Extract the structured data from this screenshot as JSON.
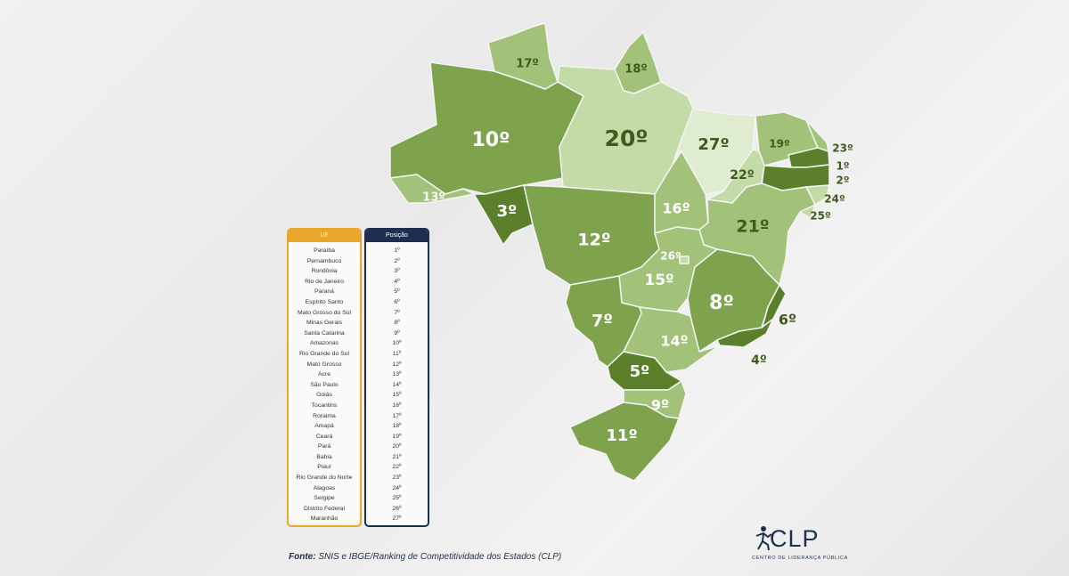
{
  "colors": {
    "c1": "#5c7f2c",
    "c2": "#7fa34c",
    "c3": "#a2c27a",
    "c4": "#c3dba6",
    "c5": "#dfeccf",
    "table_uf_border": "#e8a62b",
    "table_pos_border": "#1d2e50"
  },
  "map": {
    "states": [
      {
        "uf": "Roraima",
        "label": "17º"
      },
      {
        "uf": "Amapá",
        "label": "18º"
      },
      {
        "uf": "Amazonas",
        "label": "10º"
      },
      {
        "uf": "Pará",
        "label": "20º"
      },
      {
        "uf": "Maranhão",
        "label": "27º"
      },
      {
        "uf": "Ceará",
        "label": "19º"
      },
      {
        "uf": "Piauí",
        "label": "22º"
      },
      {
        "uf": "Rio Grande do Norte",
        "label": "23º"
      },
      {
        "uf": "Paraíba",
        "label": "1º"
      },
      {
        "uf": "Pernambuco",
        "label": "2º"
      },
      {
        "uf": "Alagoas",
        "label": "24º"
      },
      {
        "uf": "Sergipe",
        "label": "25º"
      },
      {
        "uf": "Acre",
        "label": "13º"
      },
      {
        "uf": "Rondônia",
        "label": "3º"
      },
      {
        "uf": "Mato Grosso",
        "label": "12º"
      },
      {
        "uf": "Tocantins",
        "label": "16º"
      },
      {
        "uf": "Bahia",
        "label": "21º"
      },
      {
        "uf": "Distrito Federal",
        "label": "26º"
      },
      {
        "uf": "Goiás",
        "label": "15º"
      },
      {
        "uf": "Minas Gerais",
        "label": "8º"
      },
      {
        "uf": "Espírito Santo",
        "label": "6º"
      },
      {
        "uf": "Rio de Janeiro",
        "label": "4º"
      },
      {
        "uf": "Mato Grosso do Sul",
        "label": "7º"
      },
      {
        "uf": "São Paulo",
        "label": "14º"
      },
      {
        "uf": "Paraná",
        "label": "5º"
      },
      {
        "uf": "Santa Catarina",
        "label": "9º"
      },
      {
        "uf": "Rio Grande do Sul",
        "label": "11º"
      }
    ]
  },
  "table": {
    "header_uf": "UF",
    "header_pos": "Posição",
    "rows": [
      {
        "uf": "Paraíba",
        "pos": "1º"
      },
      {
        "uf": "Pernambuco",
        "pos": "2º"
      },
      {
        "uf": "Rondônia",
        "pos": "3º"
      },
      {
        "uf": "Rio de Janeiro",
        "pos": "4º"
      },
      {
        "uf": "Paraná",
        "pos": "5º"
      },
      {
        "uf": "Espírito Santo",
        "pos": "6º"
      },
      {
        "uf": "Mato Grosso do Sul",
        "pos": "7º"
      },
      {
        "uf": "Minas Gerais",
        "pos": "8º"
      },
      {
        "uf": "Santa Catarina",
        "pos": "9º"
      },
      {
        "uf": "Amazonas",
        "pos": "10º"
      },
      {
        "uf": "Rio Grande do Sul",
        "pos": "11º"
      },
      {
        "uf": "Mato Grosso",
        "pos": "12º"
      },
      {
        "uf": "Acre",
        "pos": "13º"
      },
      {
        "uf": "São Paulo",
        "pos": "14º"
      },
      {
        "uf": "Goiás",
        "pos": "15º"
      },
      {
        "uf": "Tocantins",
        "pos": "16º"
      },
      {
        "uf": "Roraima",
        "pos": "17º"
      },
      {
        "uf": "Amapá",
        "pos": "18º"
      },
      {
        "uf": "Ceará",
        "pos": "19º"
      },
      {
        "uf": "Pará",
        "pos": "20º"
      },
      {
        "uf": "Bahia",
        "pos": "21º"
      },
      {
        "uf": "Piauí",
        "pos": "22º"
      },
      {
        "uf": "Rio Grande do Norte",
        "pos": "23º"
      },
      {
        "uf": "Alagoas",
        "pos": "24º"
      },
      {
        "uf": "Sergipe",
        "pos": "25º"
      },
      {
        "uf": "Distrito Federal",
        "pos": "26º"
      },
      {
        "uf": "Maranhão",
        "pos": "27º"
      }
    ]
  },
  "source": {
    "prefix": "Fonte:",
    "text": "SNIS e IBGE/Ranking de Competitividade dos Estados (CLP)"
  },
  "logo": {
    "icon": "runner-icon",
    "name": "CLP",
    "subtitle": "CENTRO DE LIDERANÇA PÚBLICA"
  }
}
